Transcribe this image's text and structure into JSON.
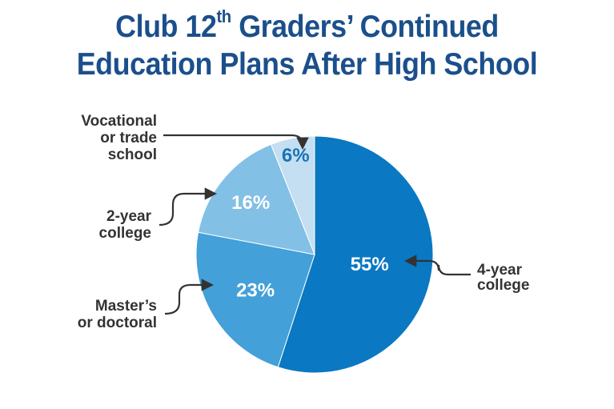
{
  "title": {
    "line1_before": "Club 12",
    "line1_sup": "th",
    "line1_after": " Graders’ Continued",
    "line2": "Education Plans After High School"
  },
  "chart_data": {
    "type": "pie",
    "title": "Club 12th Graders’ Continued Education Plans After High School",
    "slices": [
      {
        "label": [
          "4-year",
          "college"
        ],
        "value": 55,
        "display": "55%",
        "color": "#0a78c2"
      },
      {
        "label": [
          "Master’s",
          "or doctoral"
        ],
        "value": 23,
        "display": "23%",
        "color": "#43a0d8"
      },
      {
        "label": [
          "2-year",
          "college"
        ],
        "value": 16,
        "display": "16%",
        "color": "#82c0e6"
      },
      {
        "label": [
          "Vocational",
          "or trade",
          "school"
        ],
        "value": 6,
        "display": "6%",
        "color": "#c4dff2"
      }
    ]
  },
  "colors": {
    "title": "#1b4f8c",
    "leader": "#333333",
    "label_text": "#333333",
    "small_slice_value": "#1a73b8"
  }
}
